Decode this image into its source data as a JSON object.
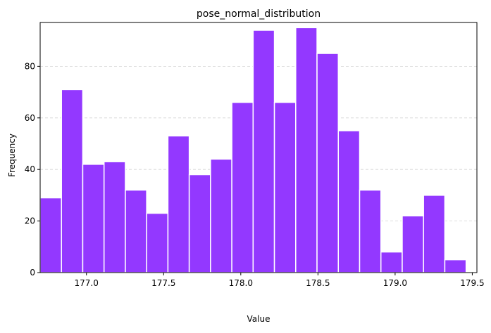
{
  "chart_data": {
    "type": "bar",
    "title": "pose_normal_distribution",
    "xlabel": "Value",
    "ylabel": "Frequency",
    "bin_edges": [
      176.7,
      176.838,
      176.976,
      177.114,
      177.252,
      177.39,
      177.528,
      177.666,
      177.804,
      177.942,
      178.08,
      178.218,
      178.356,
      178.494,
      178.632,
      178.77,
      178.908,
      179.046,
      179.184,
      179.322,
      179.46
    ],
    "values": [
      29,
      71,
      42,
      43,
      32,
      23,
      53,
      38,
      44,
      66,
      94,
      66,
      95,
      85,
      55,
      32,
      8,
      22,
      30,
      5
    ],
    "xlim": [
      176.7,
      179.53
    ],
    "ylim": [
      0,
      97
    ],
    "xticks": [
      177.0,
      177.5,
      178.0,
      178.5,
      179.0,
      179.5
    ],
    "xtick_labels": [
      "177.0",
      "177.5",
      "178.0",
      "178.5",
      "179.0",
      "179.5"
    ],
    "yticks": [
      0,
      20,
      40,
      60,
      80
    ],
    "ytick_labels": [
      "0",
      "20",
      "40",
      "60",
      "80"
    ],
    "grid": "y-dashed",
    "bar_color": "#9338ff",
    "edge_color": "#ffffff",
    "grid_color": "#d3d3d3"
  }
}
